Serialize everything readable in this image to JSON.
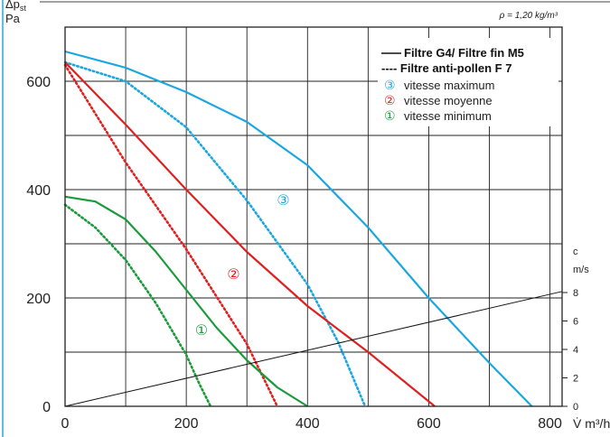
{
  "chart_data": {
    "type": "line",
    "density_label": "ρ = 1,20 kg/m³",
    "y_axis": {
      "symbol": "Δp",
      "subscript": "st",
      "unit": "Pa",
      "range": [
        0,
        700
      ],
      "ticks": [
        "0",
        "200",
        "400",
        "600"
      ]
    },
    "x_axis": {
      "symbol": "V̇",
      "unit": "m³/h",
      "range": [
        0,
        820
      ],
      "ticks": [
        "0",
        "200",
        "400",
        "600",
        "800"
      ]
    },
    "velocity_axis": {
      "symbol": "c",
      "unit": "m/s",
      "ticks": [
        "0",
        "2",
        "4",
        "6",
        "8"
      ]
    },
    "legend": {
      "solid_label": "Filtre G4/ Filtre fin M5",
      "dashed_label": "---- Filtre anti-pollen F 7",
      "speeds": [
        {
          "marker": "③",
          "label": "vitesse maximum",
          "color": "#1aa7e0"
        },
        {
          "marker": "②",
          "label": "vitesse moyenne",
          "color": "#e02020"
        },
        {
          "marker": "①",
          "label": "vitesse minimum",
          "color": "#1a9a3a"
        }
      ]
    },
    "curve_markers": [
      {
        "text": "③",
        "color": "#1aa7e0",
        "x": 360,
        "y": 372
      },
      {
        "text": "②",
        "color": "#e02020",
        "x": 278,
        "y": 235
      },
      {
        "text": "①",
        "color": "#1a9a3a",
        "x": 225,
        "y": 132
      }
    ],
    "series": [
      {
        "name": "vitesse maximum – G4/M5",
        "style": "solid",
        "color": "#1aa7e0",
        "x": [
          0,
          100,
          200,
          300,
          400,
          500,
          600,
          700,
          770
        ],
        "y": [
          655,
          625,
          580,
          525,
          445,
          330,
          200,
          80,
          0
        ]
      },
      {
        "name": "vitesse maximum – F7",
        "style": "dotted",
        "color": "#1aa7e0",
        "x": [
          0,
          100,
          200,
          300,
          400,
          450,
          495
        ],
        "y": [
          635,
          600,
          515,
          380,
          225,
          120,
          0
        ]
      },
      {
        "name": "vitesse moyenne – G4/M5",
        "style": "solid",
        "color": "#e02020",
        "x": [
          0,
          100,
          200,
          300,
          400,
          500,
          610
        ],
        "y": [
          635,
          520,
          400,
          285,
          185,
          100,
          0
        ]
      },
      {
        "name": "vitesse moyenne – F7",
        "style": "dotted",
        "color": "#e02020",
        "x": [
          0,
          100,
          200,
          300,
          350
        ],
        "y": [
          630,
          450,
          290,
          115,
          0
        ]
      },
      {
        "name": "vitesse minimum – G4/M5",
        "style": "solid",
        "color": "#1a9a3a",
        "x": [
          0,
          50,
          100,
          150,
          200,
          250,
          300,
          350,
          400
        ],
        "y": [
          387,
          378,
          345,
          285,
          215,
          145,
          85,
          35,
          0
        ]
      },
      {
        "name": "vitesse minimum – F7",
        "style": "dotted",
        "color": "#1a9a3a",
        "x": [
          0,
          50,
          100,
          150,
          200,
          220,
          240
        ],
        "y": [
          372,
          330,
          270,
          190,
          95,
          45,
          0
        ]
      },
      {
        "name": "c",
        "style": "thin",
        "color": "#111111",
        "x": [
          0,
          820
        ],
        "y": [
          0,
          212
        ]
      }
    ]
  }
}
